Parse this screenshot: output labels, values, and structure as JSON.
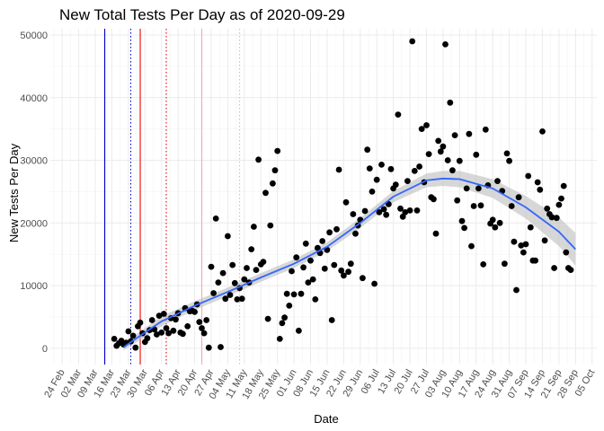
{
  "chart_data": {
    "type": "scatter",
    "title": "New Total Tests Per Day as of 2020-09-29",
    "xlabel": "Date",
    "ylabel": "New Tests Per Day",
    "xlim": [
      "2020-02-19",
      "2020-10-07"
    ],
    "ylim": [
      -2600,
      51000
    ],
    "y_ticks": [
      0,
      10000,
      20000,
      30000,
      40000,
      50000
    ],
    "x_ticks": [
      {
        "date": "2020-02-24",
        "label": "24 Feb"
      },
      {
        "date": "2020-03-02",
        "label": "02 Mar"
      },
      {
        "date": "2020-03-09",
        "label": "09 Mar"
      },
      {
        "date": "2020-03-16",
        "label": "16 Mar"
      },
      {
        "date": "2020-03-23",
        "label": "23 Mar"
      },
      {
        "date": "2020-03-30",
        "label": "30 Mar"
      },
      {
        "date": "2020-04-06",
        "label": "06 Apr"
      },
      {
        "date": "2020-04-13",
        "label": "13 Apr"
      },
      {
        "date": "2020-04-20",
        "label": "20 Apr"
      },
      {
        "date": "2020-04-27",
        "label": "27 Apr"
      },
      {
        "date": "2020-05-04",
        "label": "04 May"
      },
      {
        "date": "2020-05-11",
        "label": "11 May"
      },
      {
        "date": "2020-05-18",
        "label": "18 May"
      },
      {
        "date": "2020-05-25",
        "label": "25 May"
      },
      {
        "date": "2020-06-01",
        "label": "01 Jun"
      },
      {
        "date": "2020-06-08",
        "label": "08 Jun"
      },
      {
        "date": "2020-06-15",
        "label": "15 Jun"
      },
      {
        "date": "2020-06-22",
        "label": "22 Jun"
      },
      {
        "date": "2020-06-29",
        "label": "29 Jun"
      },
      {
        "date": "2020-07-06",
        "label": "06 Jul"
      },
      {
        "date": "2020-07-13",
        "label": "13 Jul"
      },
      {
        "date": "2020-07-20",
        "label": "20 Jul"
      },
      {
        "date": "2020-07-27",
        "label": "27 Jul"
      },
      {
        "date": "2020-08-03",
        "label": "03 Aug"
      },
      {
        "date": "2020-08-10",
        "label": "10 Aug"
      },
      {
        "date": "2020-08-17",
        "label": "17 Aug"
      },
      {
        "date": "2020-08-24",
        "label": "24 Aug"
      },
      {
        "date": "2020-08-31",
        "label": "31 Aug"
      },
      {
        "date": "2020-09-07",
        "label": "07 Sep"
      },
      {
        "date": "2020-09-14",
        "label": "14 Sep"
      },
      {
        "date": "2020-09-21",
        "label": "21 Sep"
      },
      {
        "date": "2020-09-28",
        "label": "28 Sep"
      },
      {
        "date": "2020-10-05",
        "label": "05 Oct"
      }
    ],
    "grid": true,
    "legend": "none",
    "point_color": "#000000",
    "vertical_lines": [
      {
        "date": "2020-03-13",
        "color": "#0000cc",
        "style": "solid"
      },
      {
        "date": "2020-03-24",
        "color": "#0000cc",
        "style": "dotted"
      },
      {
        "date": "2020-03-28",
        "color": "#ee0000",
        "style": "solid"
      },
      {
        "date": "2020-04-08",
        "color": "#ee0000",
        "style": "dotted"
      },
      {
        "date": "2020-04-23",
        "color": "#ffaaaa",
        "style": "solid"
      },
      {
        "date": "2020-05-09",
        "color": "#ffaaaa",
        "style": "dotted"
      }
    ],
    "trend": {
      "color": "#3366ff",
      "band_color": "#bdbdbd",
      "points": [
        {
          "date": "2020-03-21",
          "y": 200,
          "lo": -300,
          "hi": 700
        },
        {
          "date": "2020-03-28",
          "y": 2000,
          "lo": 1300,
          "hi": 2700
        },
        {
          "date": "2020-04-06",
          "y": 4300,
          "lo": 3500,
          "hi": 5100
        },
        {
          "date": "2020-04-20",
          "y": 6800,
          "lo": 6100,
          "hi": 7500
        },
        {
          "date": "2020-05-04",
          "y": 9000,
          "lo": 8300,
          "hi": 9700
        },
        {
          "date": "2020-05-18",
          "y": 11300,
          "lo": 10600,
          "hi": 12000
        },
        {
          "date": "2020-06-01",
          "y": 13500,
          "lo": 12800,
          "hi": 14200
        },
        {
          "date": "2020-06-15",
          "y": 16200,
          "lo": 15500,
          "hi": 16900
        },
        {
          "date": "2020-06-29",
          "y": 20000,
          "lo": 19200,
          "hi": 20800
        },
        {
          "date": "2020-07-13",
          "y": 24200,
          "lo": 23300,
          "hi": 25100
        },
        {
          "date": "2020-07-27",
          "y": 26800,
          "lo": 25700,
          "hi": 27900
        },
        {
          "date": "2020-08-03",
          "y": 27100,
          "lo": 25900,
          "hi": 28300
        },
        {
          "date": "2020-08-10",
          "y": 27000,
          "lo": 25700,
          "hi": 28300
        },
        {
          "date": "2020-08-24",
          "y": 25500,
          "lo": 24000,
          "hi": 27000
        },
        {
          "date": "2020-09-07",
          "y": 22500,
          "lo": 20700,
          "hi": 24300
        },
        {
          "date": "2020-09-21",
          "y": 18600,
          "lo": 16300,
          "hi": 20900
        },
        {
          "date": "2020-09-28",
          "y": 15800,
          "lo": 13200,
          "hi": 18400
        }
      ]
    },
    "points": [
      [
        "2020-03-17",
        1500
      ],
      [
        "2020-03-18",
        400
      ],
      [
        "2020-03-19",
        800
      ],
      [
        "2020-03-20",
        1200
      ],
      [
        "2020-03-21",
        600
      ],
      [
        "2020-03-22",
        900
      ],
      [
        "2020-03-23",
        2700
      ],
      [
        "2020-03-24",
        1100
      ],
      [
        "2020-03-25",
        2000
      ],
      [
        "2020-03-26",
        100
      ],
      [
        "2020-03-27",
        3500
      ],
      [
        "2020-03-28",
        4100
      ],
      [
        "2020-03-29",
        2400
      ],
      [
        "2020-03-30",
        1000
      ],
      [
        "2020-03-31",
        1600
      ],
      [
        "2020-04-01",
        2900
      ],
      [
        "2020-04-02",
        4500
      ],
      [
        "2020-04-03",
        3000
      ],
      [
        "2020-04-04",
        2200
      ],
      [
        "2020-04-05",
        5200
      ],
      [
        "2020-04-06",
        2500
      ],
      [
        "2020-04-07",
        5500
      ],
      [
        "2020-04-08",
        3200
      ],
      [
        "2020-04-09",
        2400
      ],
      [
        "2020-04-10",
        4800
      ],
      [
        "2020-04-11",
        2800
      ],
      [
        "2020-04-12",
        4600
      ],
      [
        "2020-04-13",
        5600
      ],
      [
        "2020-04-14",
        2500
      ],
      [
        "2020-04-15",
        2300
      ],
      [
        "2020-04-16",
        6400
      ],
      [
        "2020-04-17",
        3500
      ],
      [
        "2020-04-18",
        5900
      ],
      [
        "2020-04-19",
        6000
      ],
      [
        "2020-04-20",
        5800
      ],
      [
        "2020-04-21",
        7000
      ],
      [
        "2020-04-22",
        4200
      ],
      [
        "2020-04-23",
        3200
      ],
      [
        "2020-04-24",
        2400
      ],
      [
        "2020-04-25",
        4500
      ],
      [
        "2020-04-26",
        100
      ],
      [
        "2020-04-27",
        13000
      ],
      [
        "2020-04-28",
        8800
      ],
      [
        "2020-04-29",
        20700
      ],
      [
        "2020-04-30",
        10500
      ],
      [
        "2020-05-01",
        200
      ],
      [
        "2020-05-02",
        12000
      ],
      [
        "2020-05-03",
        7900
      ],
      [
        "2020-05-04",
        17900
      ],
      [
        "2020-05-05",
        8500
      ],
      [
        "2020-05-06",
        13300
      ],
      [
        "2020-05-07",
        10400
      ],
      [
        "2020-05-08",
        7800
      ],
      [
        "2020-05-09",
        9600
      ],
      [
        "2020-05-10",
        7900
      ],
      [
        "2020-05-11",
        11000
      ],
      [
        "2020-05-12",
        12800
      ],
      [
        "2020-05-13",
        10500
      ],
      [
        "2020-05-14",
        15800
      ],
      [
        "2020-05-15",
        19400
      ],
      [
        "2020-05-16",
        12500
      ],
      [
        "2020-05-17",
        30100
      ],
      [
        "2020-05-18",
        13400
      ],
      [
        "2020-05-19",
        13800
      ],
      [
        "2020-05-20",
        24800
      ],
      [
        "2020-05-21",
        4700
      ],
      [
        "2020-05-22",
        19600
      ],
      [
        "2020-05-23",
        26300
      ],
      [
        "2020-05-24",
        28400
      ],
      [
        "2020-05-25",
        31500
      ],
      [
        "2020-05-26",
        1500
      ],
      [
        "2020-05-27",
        4000
      ],
      [
        "2020-05-28",
        4900
      ],
      [
        "2020-05-29",
        8700
      ],
      [
        "2020-05-30",
        6800
      ],
      [
        "2020-05-31",
        12300
      ],
      [
        "2020-06-01",
        8600
      ],
      [
        "2020-06-02",
        14500
      ],
      [
        "2020-06-03",
        2800
      ],
      [
        "2020-06-04",
        8700
      ],
      [
        "2020-06-05",
        12900
      ],
      [
        "2020-06-06",
        16700
      ],
      [
        "2020-06-07",
        10500
      ],
      [
        "2020-06-08",
        14000
      ],
      [
        "2020-06-09",
        11000
      ],
      [
        "2020-06-10",
        7800
      ],
      [
        "2020-06-11",
        16000
      ],
      [
        "2020-06-12",
        15200
      ],
      [
        "2020-06-13",
        17100
      ],
      [
        "2020-06-14",
        12700
      ],
      [
        "2020-06-15",
        15700
      ],
      [
        "2020-06-16",
        18500
      ],
      [
        "2020-06-17",
        4500
      ],
      [
        "2020-06-18",
        13300
      ],
      [
        "2020-06-19",
        19000
      ],
      [
        "2020-06-20",
        28500
      ],
      [
        "2020-06-21",
        12400
      ],
      [
        "2020-06-22",
        11600
      ],
      [
        "2020-06-23",
        23300
      ],
      [
        "2020-06-24",
        12200
      ],
      [
        "2020-06-25",
        13500
      ],
      [
        "2020-06-26",
        21400
      ],
      [
        "2020-06-27",
        18300
      ],
      [
        "2020-06-28",
        19600
      ],
      [
        "2020-06-29",
        20500
      ],
      [
        "2020-06-30",
        11200
      ],
      [
        "2020-07-01",
        21900
      ],
      [
        "2020-07-02",
        31700
      ],
      [
        "2020-07-03",
        28700
      ],
      [
        "2020-07-04",
        25000
      ],
      [
        "2020-07-05",
        10300
      ],
      [
        "2020-07-06",
        26900
      ],
      [
        "2020-07-07",
        21700
      ],
      [
        "2020-07-08",
        29300
      ],
      [
        "2020-07-09",
        22200
      ],
      [
        "2020-07-10",
        21300
      ],
      [
        "2020-07-11",
        23000
      ],
      [
        "2020-07-12",
        28600
      ],
      [
        "2020-07-13",
        25500
      ],
      [
        "2020-07-14",
        26100
      ],
      [
        "2020-07-15",
        37300
      ],
      [
        "2020-07-16",
        22300
      ],
      [
        "2020-07-17",
        21000
      ],
      [
        "2020-07-18",
        21700
      ],
      [
        "2020-07-19",
        26700
      ],
      [
        "2020-07-20",
        22000
      ],
      [
        "2020-07-21",
        49000
      ],
      [
        "2020-07-22",
        28300
      ],
      [
        "2020-07-23",
        22000
      ],
      [
        "2020-07-24",
        29000
      ],
      [
        "2020-07-25",
        35000
      ],
      [
        "2020-07-26",
        26500
      ],
      [
        "2020-07-27",
        35600
      ],
      [
        "2020-07-28",
        31000
      ],
      [
        "2020-07-29",
        24100
      ],
      [
        "2020-07-30",
        23800
      ],
      [
        "2020-07-31",
        18300
      ],
      [
        "2020-08-01",
        33100
      ],
      [
        "2020-08-02",
        31400
      ],
      [
        "2020-08-03",
        32200
      ],
      [
        "2020-08-04",
        48500
      ],
      [
        "2020-08-05",
        30000
      ],
      [
        "2020-08-06",
        39200
      ],
      [
        "2020-08-07",
        28400
      ],
      [
        "2020-08-08",
        34000
      ],
      [
        "2020-08-09",
        23600
      ],
      [
        "2020-08-10",
        29900
      ],
      [
        "2020-08-11",
        20300
      ],
      [
        "2020-08-12",
        19200
      ],
      [
        "2020-08-13",
        25500
      ],
      [
        "2020-08-14",
        34200
      ],
      [
        "2020-08-15",
        16300
      ],
      [
        "2020-08-16",
        22700
      ],
      [
        "2020-08-17",
        30900
      ],
      [
        "2020-08-18",
        25500
      ],
      [
        "2020-08-19",
        22800
      ],
      [
        "2020-08-20",
        13400
      ],
      [
        "2020-08-21",
        34900
      ],
      [
        "2020-08-22",
        26000
      ],
      [
        "2020-08-23",
        19900
      ],
      [
        "2020-08-24",
        20500
      ],
      [
        "2020-08-25",
        19300
      ],
      [
        "2020-08-26",
        26700
      ],
      [
        "2020-08-27",
        20000
      ],
      [
        "2020-08-28",
        25100
      ],
      [
        "2020-08-29",
        13500
      ],
      [
        "2020-08-30",
        31100
      ],
      [
        "2020-08-31",
        29900
      ],
      [
        "2020-09-01",
        22700
      ],
      [
        "2020-09-02",
        17000
      ],
      [
        "2020-09-03",
        9300
      ],
      [
        "2020-09-04",
        24100
      ],
      [
        "2020-09-05",
        16400
      ],
      [
        "2020-09-06",
        15300
      ],
      [
        "2020-09-07",
        16600
      ],
      [
        "2020-09-08",
        27500
      ],
      [
        "2020-09-09",
        19300
      ],
      [
        "2020-09-10",
        14000
      ],
      [
        "2020-09-11",
        14000
      ],
      [
        "2020-09-12",
        26500
      ],
      [
        "2020-09-13",
        25300
      ],
      [
        "2020-09-14",
        34600
      ],
      [
        "2020-09-15",
        17200
      ],
      [
        "2020-09-16",
        22300
      ],
      [
        "2020-09-17",
        21400
      ],
      [
        "2020-09-18",
        20900
      ],
      [
        "2020-09-19",
        12800
      ],
      [
        "2020-09-20",
        20800
      ],
      [
        "2020-09-21",
        22900
      ],
      [
        "2020-09-22",
        23900
      ],
      [
        "2020-09-23",
        25900
      ],
      [
        "2020-09-24",
        15300
      ],
      [
        "2020-09-25",
        12800
      ],
      [
        "2020-09-26",
        12500
      ]
    ]
  }
}
